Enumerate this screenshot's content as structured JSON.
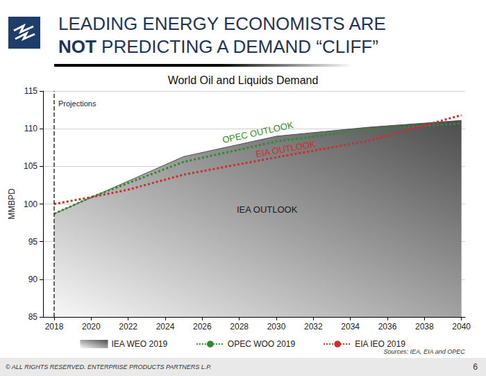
{
  "heading": {
    "lines": [
      [
        {
          "text": "LEADING ENERGY ECONOMISTS ARE",
          "bold": false
        }
      ],
      [
        {
          "text": "NOT",
          "bold": true
        },
        {
          "text": " PREDICTING A DEMAND “CLIFF”",
          "bold": false
        }
      ]
    ]
  },
  "chart_data": {
    "type": "line",
    "title": "World Oil and Liquids Demand",
    "y_label": "MMBPD",
    "xlim": [
      2017.4,
      2040.2
    ],
    "xticks": [
      2018,
      2020,
      2022,
      2024,
      2026,
      2028,
      2030,
      2032,
      2034,
      2036,
      2038,
      2040
    ],
    "ylim": [
      85,
      115
    ],
    "yticks": [
      85,
      90,
      95,
      100,
      105,
      110,
      115
    ],
    "grid": true,
    "legend": "bottom",
    "series": [
      {
        "name": "IEA WEO 2019",
        "type": "area",
        "color": "#4d4d4d",
        "x": [
          2018,
          2025,
          2030,
          2035,
          2040
        ],
        "values": [
          98.7,
          106.3,
          109.0,
          110.2,
          111.1
        ]
      },
      {
        "name": "OPEC WOO 2019",
        "type": "line",
        "line_style": "dotted",
        "color": "#2e8b2e",
        "x": [
          2018,
          2020,
          2025,
          2030,
          2035,
          2040
        ],
        "values": [
          98.7,
          100.9,
          105.6,
          108.3,
          109.9,
          110.7
        ]
      },
      {
        "name": "EIA IEO 2019",
        "type": "line",
        "line_style": "dotted",
        "color": "#cc2e2e",
        "x": [
          2018,
          2020,
          2022,
          2025,
          2030,
          2035,
          2040
        ],
        "values": [
          100.0,
          100.9,
          101.9,
          103.9,
          106.2,
          108.4,
          111.8
        ]
      }
    ],
    "annotations": [
      {
        "text": "Projections",
        "x": 2018,
        "y": 113.3,
        "color": "#262626",
        "line_style": "dashed"
      },
      {
        "text": "OPEC OUTLOOK",
        "x": 2029,
        "y": 109.5,
        "color": "#2e8b2e"
      },
      {
        "text": "EIA OUTLOOK",
        "x": 2030.5,
        "y": 107.3,
        "color": "#cc2e2e"
      },
      {
        "text": "IEA OUTLOOK",
        "x": 2029.5,
        "y": 99.3,
        "color": "#1a1a1a"
      }
    ],
    "source": "Sources: IEA, EIA and OPEC"
  },
  "footer": {
    "text": "© ALL RIGHTS RESERVED. ENTERPRISE PRODUCTS PARTNERS L.P.",
    "page": 6
  }
}
